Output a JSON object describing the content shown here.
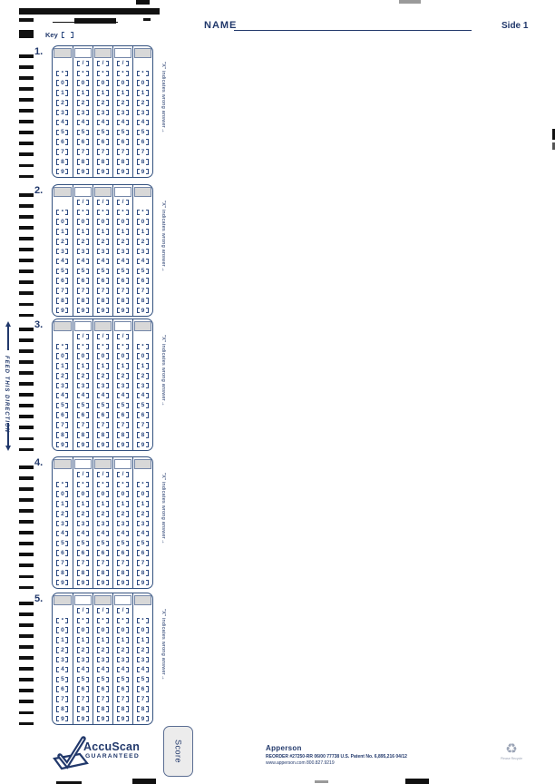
{
  "header": {
    "name_label": "NAME",
    "side_label": "Side 1",
    "key_label": "Key"
  },
  "grids": {
    "items": [
      {
        "number": "1."
      },
      {
        "number": "2."
      },
      {
        "number": "3."
      },
      {
        "number": "4."
      },
      {
        "number": "5."
      }
    ],
    "digits": [
      "0",
      "1",
      "2",
      "3",
      "4",
      "5",
      "6",
      "7",
      "8",
      "9"
    ],
    "slash_symbol": "/",
    "point_symbol": "•",
    "wrong_answer_note": "\"X\" indicates wrong answer→"
  },
  "left_edge": {
    "feed_text": "FEED THIS DIRECTION"
  },
  "footer": {
    "score_label": "Score",
    "accuscan_name": "AccuScan",
    "accuscan_sub": "GUARANTEED",
    "brand": "Apperson",
    "reorder_line": "REORDER #27250-RR 06/00 77738   U.S. Patent No. 6,895,216    04/12",
    "website_line": "www.apperson.com 800.827.9219",
    "recycle_note": "Please Recycle",
    "recycle_icon": "♻"
  },
  "colors": {
    "navy": "#21386b",
    "bubble_ink": "#2d4a80",
    "header_gray": "#d8d8d8",
    "timing_mark": "#111111"
  }
}
